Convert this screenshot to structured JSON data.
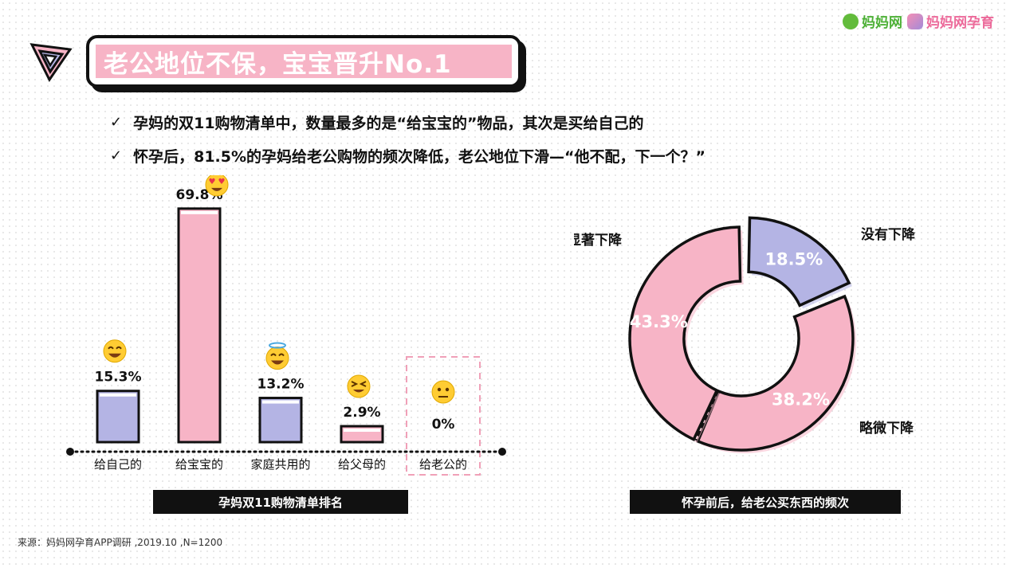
{
  "brand": {
    "name_a": "妈妈网",
    "name_b": "妈妈网孕育"
  },
  "title": "老公地位不保，宝宝晋升No.1",
  "bullets": [
    {
      "mark": "✓",
      "text": "孕妈的双11购物清单中，数量最多的是“给宝宝的”物品，其次是买给自己的"
    },
    {
      "mark": "✓",
      "text": "怀孕后，81.5%的孕妈给老公购物的频次降低，老公地位下滑—“他不配，下一个？”"
    }
  ],
  "chart_data": [
    {
      "type": "bar",
      "caption": "孕妈双11购物清单排名",
      "categories": [
        "给自己的",
        "给宝宝的",
        "家庭共用的",
        "给父母的",
        "给老公的"
      ],
      "values": [
        15.3,
        69.8,
        13.2,
        2.9,
        0
      ],
      "value_labels": [
        "15.3%",
        "69.8%",
        "13.2%",
        "2.9%",
        "0%"
      ],
      "emojis": [
        "grin",
        "heart-eyes",
        "angel",
        "squint",
        "neutral"
      ],
      "colors": [
        "#b4b4e4",
        "#f7b4c6",
        "#b4b4e4",
        "#f7b4c6",
        "#f7b4c6"
      ]
    },
    {
      "type": "pie",
      "caption": "怀孕前后，给老公买东西的频次",
      "slices": [
        {
          "label": "没有下降",
          "value": 18.5,
          "value_label": "18.5%",
          "color": "#b4b4e4"
        },
        {
          "label": "略微下降",
          "value": 38.2,
          "value_label": "38.2%",
          "color": "#f7b4c6"
        },
        {
          "label": "显著下降",
          "value": 43.3,
          "value_label": "43.3%",
          "color": "#f7b4c6"
        }
      ]
    }
  ],
  "source": "来源：妈妈网孕育APP调研 ,2019.10 ,N=1200"
}
